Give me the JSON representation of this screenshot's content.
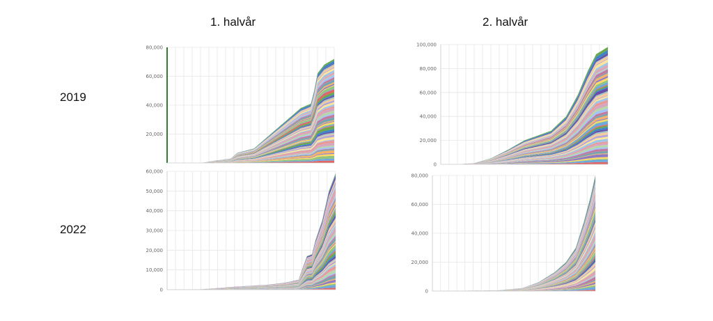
{
  "columns": [
    "1. halvår",
    "2. halvår"
  ],
  "rows": [
    "2019",
    "2022"
  ],
  "colors": [
    "#e06666",
    "#6fa8dc",
    "#93c47d",
    "#ffd966",
    "#8e7cc3",
    "#f6b26b",
    "#76a5af",
    "#c27ba0",
    "#a4c2f4",
    "#b6d7a8",
    "#d5a6bd",
    "#ea9999",
    "#9fc5e8",
    "#ffe599",
    "#b4a7d6",
    "#f9cb9c",
    "#a2c4c9",
    "#674ea7",
    "#3d85c6",
    "#6aa84f"
  ],
  "chart_data": [
    {
      "id": "2019-h1",
      "type": "area",
      "stacked": true,
      "title": "",
      "xlabel": "",
      "ylabel": "",
      "ylim": [
        0,
        80000
      ],
      "yticks": [
        20000,
        40000,
        60000,
        80000
      ],
      "yticklabels": [
        "20,000",
        "40,000",
        "60,000",
        "80,000"
      ],
      "grid": true,
      "legend": "none",
      "x_points": 100,
      "total_profile": [
        [
          0,
          0
        ],
        [
          20,
          0
        ],
        [
          28,
          1500
        ],
        [
          38,
          3000
        ],
        [
          42,
          7000
        ],
        [
          52,
          10000
        ],
        [
          62,
          20000
        ],
        [
          72,
          30000
        ],
        [
          80,
          38000
        ],
        [
          86,
          41000
        ],
        [
          88,
          50000
        ],
        [
          90,
          62000
        ],
        [
          94,
          68000
        ],
        [
          100,
          72000
        ]
      ],
      "n_layers": 60,
      "accent": "#2e7d32"
    },
    {
      "id": "2019-h2",
      "type": "area",
      "stacked": true,
      "title": "",
      "xlabel": "",
      "ylabel": "",
      "ylim": [
        0,
        100000
      ],
      "yticks": [
        0,
        20000,
        40000,
        60000,
        80000,
        100000
      ],
      "yticklabels": [
        "0",
        "20,000",
        "40,000",
        "60,000",
        "80,000",
        "100,000"
      ],
      "grid": true,
      "legend": "none",
      "x_points": 100,
      "total_profile": [
        [
          0,
          0
        ],
        [
          10,
          0
        ],
        [
          20,
          1000
        ],
        [
          30,
          5000
        ],
        [
          40,
          12000
        ],
        [
          50,
          20000
        ],
        [
          58,
          24000
        ],
        [
          66,
          28000
        ],
        [
          75,
          40000
        ],
        [
          82,
          58000
        ],
        [
          88,
          78000
        ],
        [
          93,
          92000
        ],
        [
          100,
          98000
        ]
      ],
      "n_layers": 60
    },
    {
      "id": "2022-h1",
      "type": "area",
      "stacked": true,
      "title": "",
      "xlabel": "",
      "ylabel": "",
      "ylim": [
        0,
        60000
      ],
      "yticks": [
        0,
        10000,
        20000,
        30000,
        40000,
        50000,
        60000
      ],
      "yticklabels": [
        "0",
        "10,000",
        "20,000",
        "30,000",
        "40,000",
        "50,000",
        "60,000"
      ],
      "grid": true,
      "legend": "none",
      "x_points": 100,
      "total_profile": [
        [
          0,
          0
        ],
        [
          20,
          200
        ],
        [
          30,
          800
        ],
        [
          40,
          1500
        ],
        [
          50,
          2000
        ],
        [
          60,
          2500
        ],
        [
          70,
          3500
        ],
        [
          78,
          5000
        ],
        [
          80,
          10000
        ],
        [
          83,
          17000
        ],
        [
          86,
          18000
        ],
        [
          88,
          25000
        ],
        [
          92,
          35000
        ],
        [
          96,
          50000
        ],
        [
          100,
          59000
        ]
      ],
      "n_layers": 60
    },
    {
      "id": "2022-h2",
      "type": "area",
      "stacked": true,
      "title": "",
      "xlabel": "",
      "ylabel": "",
      "ylim": [
        0,
        80000
      ],
      "yticks": [
        0,
        20000,
        40000,
        60000,
        80000
      ],
      "yticklabels": [
        "0",
        "20,000",
        "40,000",
        "60,000",
        "80,000"
      ],
      "grid": true,
      "legend": "none",
      "x_points": 100,
      "total_profile": [
        [
          0,
          0
        ],
        [
          40,
          500
        ],
        [
          55,
          2000
        ],
        [
          65,
          6000
        ],
        [
          75,
          13000
        ],
        [
          82,
          20000
        ],
        [
          88,
          30000
        ],
        [
          93,
          48000
        ],
        [
          97,
          65000
        ],
        [
          100,
          80000
        ]
      ],
      "n_layers": 60
    }
  ]
}
